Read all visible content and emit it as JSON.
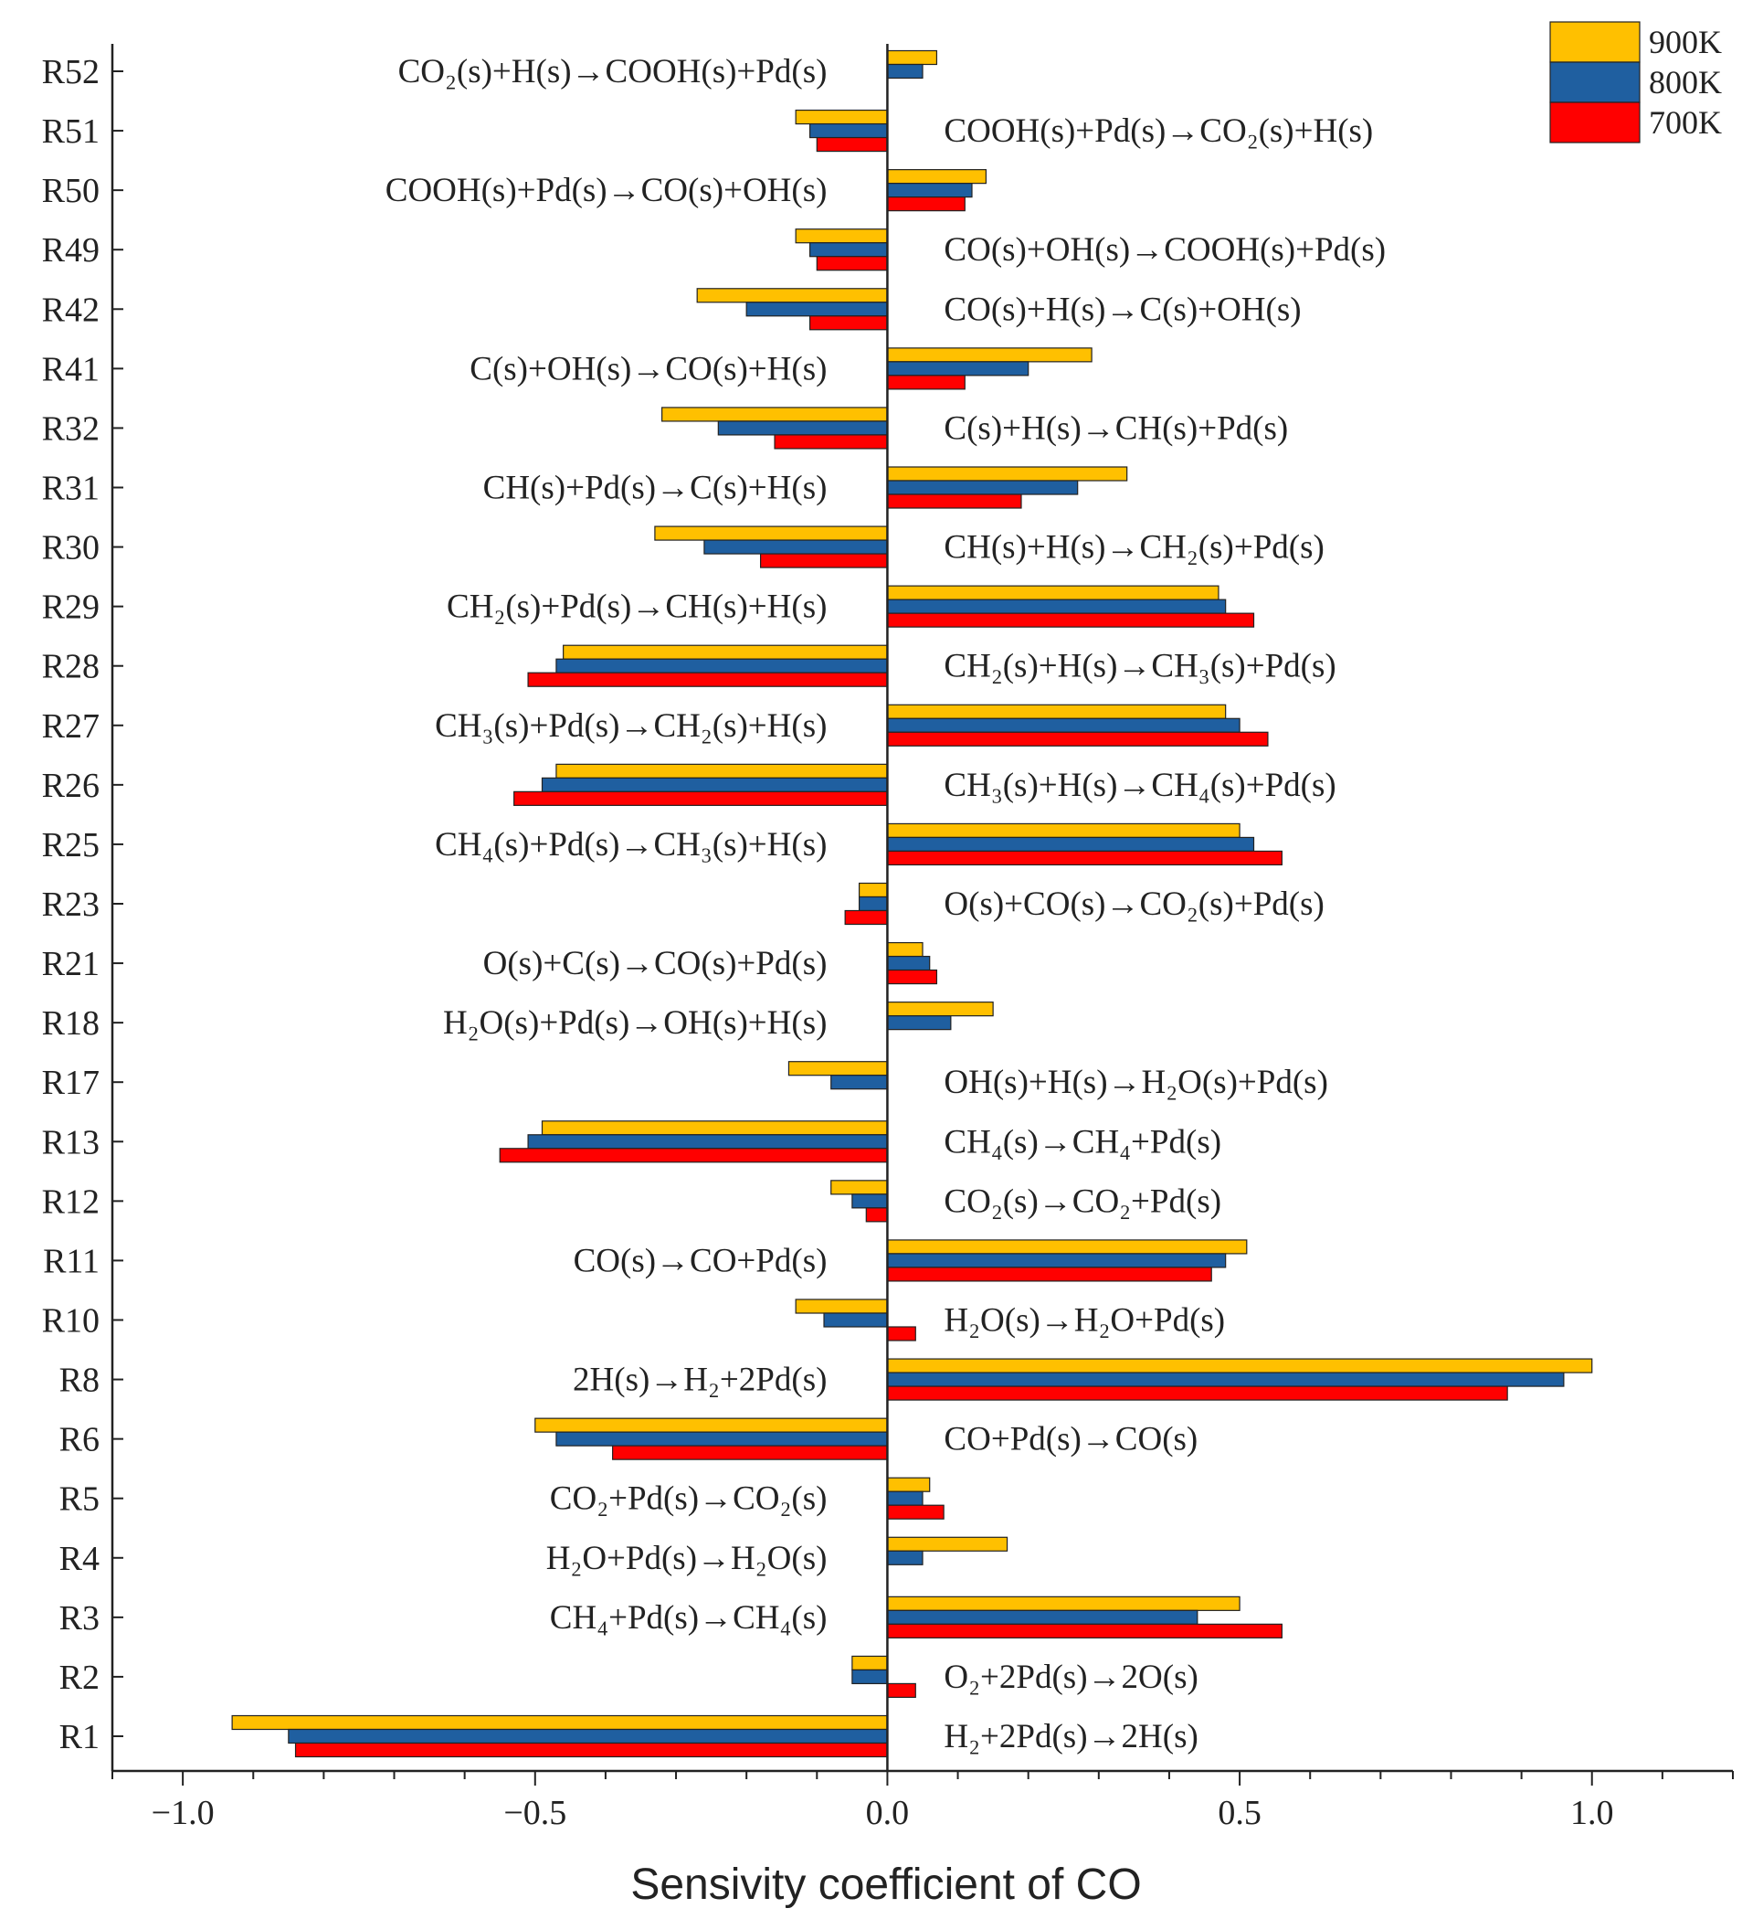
{
  "chart_data": {
    "type": "bar",
    "orientation": "horizontal",
    "xlabel": "Sensivity coefficient of CO",
    "ylabel": "",
    "xlim": [
      -1.1,
      1.2
    ],
    "xticks": [
      -1.0,
      -0.5,
      0.0,
      0.5,
      1.0
    ],
    "xtick_labels": [
      "−1.0",
      "−0.5",
      "0.0",
      "0.5",
      "1.0"
    ],
    "legend_position": "top-right",
    "categories": [
      "R52",
      "R51",
      "R50",
      "R49",
      "R42",
      "R41",
      "R32",
      "R31",
      "R30",
      "R29",
      "R28",
      "R27",
      "R26",
      "R25",
      "R23",
      "R21",
      "R18",
      "R17",
      "R13",
      "R12",
      "R11",
      "R10",
      "R8",
      "R6",
      "R5",
      "R4",
      "R3",
      "R2",
      "R1"
    ],
    "reactions": [
      {
        "text": "CO₂(s)+H(s)→COOH(s)+Pd(s)",
        "side": "left"
      },
      {
        "text": "COOH(s)+Pd(s)→CO₂(s)+H(s)",
        "side": "right"
      },
      {
        "text": "COOH(s)+Pd(s)→CO(s)+OH(s)",
        "side": "left"
      },
      {
        "text": "CO(s)+OH(s)→COOH(s)+Pd(s)",
        "side": "right"
      },
      {
        "text": "CO(s)+H(s)→C(s)+OH(s)",
        "side": "right"
      },
      {
        "text": "C(s)+OH(s)→CO(s)+H(s)",
        "side": "left"
      },
      {
        "text": "C(s)+H(s)→CH(s)+Pd(s)",
        "side": "right"
      },
      {
        "text": "CH(s)+Pd(s)→C(s)+H(s)",
        "side": "left"
      },
      {
        "text": "CH(s)+H(s)→CH₂(s)+Pd(s)",
        "side": "right"
      },
      {
        "text": "CH₂(s)+Pd(s)→CH(s)+H(s)",
        "side": "left"
      },
      {
        "text": "CH₂(s)+H(s)→CH₃(s)+Pd(s)",
        "side": "right"
      },
      {
        "text": "CH₃(s)+Pd(s)→CH₂(s)+H(s)",
        "side": "left"
      },
      {
        "text": "CH₃(s)+H(s)→CH₄(s)+Pd(s)",
        "side": "right"
      },
      {
        "text": "CH₄(s)+Pd(s)→CH₃(s)+H(s)",
        "side": "left"
      },
      {
        "text": "O(s)+CO(s)→CO₂(s)+Pd(s)",
        "side": "right"
      },
      {
        "text": "O(s)+C(s)→CO(s)+Pd(s)",
        "side": "left"
      },
      {
        "text": "H₂O(s)+Pd(s)→OH(s)+H(s)",
        "side": "left"
      },
      {
        "text": "OH(s)+H(s)→H₂O(s)+Pd(s)",
        "side": "right"
      },
      {
        "text": "CH₄(s)→CH₄+Pd(s)",
        "side": "right"
      },
      {
        "text": "CO₂(s)→CO₂+Pd(s)",
        "side": "right"
      },
      {
        "text": "CO(s)→CO+Pd(s)",
        "side": "left"
      },
      {
        "text": "H₂O(s)→H₂O+Pd(s)",
        "side": "right"
      },
      {
        "text": "2H(s)→H₂+2Pd(s)",
        "side": "left"
      },
      {
        "text": "CO+Pd(s)→CO(s)",
        "side": "right"
      },
      {
        "text": "CO₂+Pd(s)→CO₂(s)",
        "side": "left"
      },
      {
        "text": "H₂O+Pd(s)→H₂O(s)",
        "side": "left"
      },
      {
        "text": "CH₄+Pd(s)→CH₄(s)",
        "side": "left"
      },
      {
        "text": "O₂+2Pd(s)→2O(s)",
        "side": "right"
      },
      {
        "text": "H₂+2Pd(s)→2H(s)",
        "side": "right"
      }
    ],
    "series": [
      {
        "name": "900K",
        "color": "#FFC000",
        "values": [
          0.07,
          -0.13,
          0.14,
          -0.13,
          -0.27,
          0.29,
          -0.32,
          0.34,
          -0.33,
          0.47,
          -0.46,
          0.48,
          -0.47,
          0.5,
          -0.04,
          0.05,
          0.15,
          -0.14,
          -0.49,
          -0.08,
          0.51,
          -0.13,
          1.0,
          -0.5,
          0.06,
          0.17,
          0.5,
          -0.05,
          -0.93
        ]
      },
      {
        "name": "800K",
        "color": "#1F5FA0",
        "values": [
          0.05,
          -0.11,
          0.12,
          -0.11,
          -0.2,
          0.2,
          -0.24,
          0.27,
          -0.26,
          0.48,
          -0.47,
          0.5,
          -0.49,
          0.52,
          -0.04,
          0.06,
          0.09,
          -0.08,
          -0.51,
          -0.05,
          0.48,
          -0.09,
          0.96,
          -0.47,
          0.05,
          0.05,
          0.44,
          -0.05,
          -0.85
        ]
      },
      {
        "name": "700K",
        "color": "#FF0000",
        "values": [
          0,
          -0.1,
          0.11,
          -0.1,
          -0.11,
          0.11,
          -0.16,
          0.19,
          -0.18,
          0.52,
          -0.51,
          0.54,
          -0.53,
          0.56,
          -0.06,
          0.07,
          0,
          0,
          -0.55,
          -0.03,
          0.46,
          0.04,
          0.88,
          -0.39,
          0.08,
          0,
          0.56,
          0.04,
          -0.84
        ]
      }
    ]
  }
}
